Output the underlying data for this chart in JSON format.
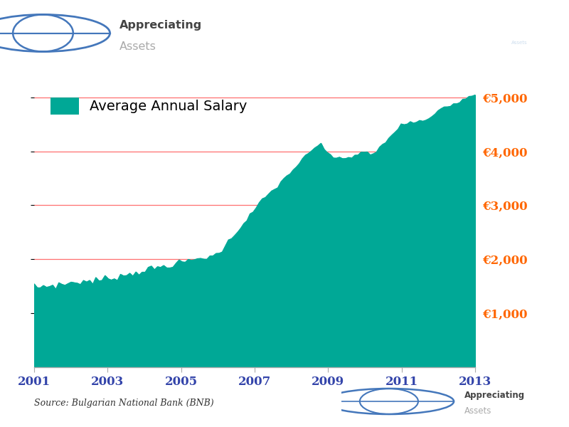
{
  "fill_color": "#00A896",
  "grid_color": "#FF6060",
  "x_tick_color": "#3344AA",
  "y_tick_color": "#FF6600",
  "source_text": "Source: Bulgarian National Bank (BNB)",
  "legend_label": "Average Annual Salary",
  "ylim": [
    0,
    5300
  ],
  "yticks": [
    1000,
    2000,
    3000,
    4000,
    5000
  ],
  "ytick_labels": [
    "€1,000",
    "€2,000",
    "€3,000",
    "€4,000",
    "€5,000"
  ],
  "x_years": [
    2001,
    2003,
    2005,
    2007,
    2009,
    2011,
    2013
  ],
  "values": [
    1480,
    1490,
    1470,
    1500,
    1510,
    1495,
    1520,
    1505,
    1530,
    1515,
    1540,
    1555,
    1560,
    1575,
    1565,
    1580,
    1590,
    1575,
    1600,
    1585,
    1610,
    1595,
    1620,
    1635,
    1640,
    1660,
    1650,
    1675,
    1690,
    1705,
    1720,
    1710,
    1735,
    1750,
    1765,
    1780,
    1795,
    1810,
    1825,
    1815,
    1840,
    1855,
    1870,
    1860,
    1885,
    1900,
    1915,
    1930,
    1945,
    1960,
    1950,
    1975,
    1990,
    2005,
    2020,
    2010,
    2035,
    2050,
    2065,
    2080,
    2120,
    2180,
    2250,
    2320,
    2390,
    2460,
    2530,
    2600,
    2670,
    2740,
    2810,
    2880,
    2950,
    3020,
    3090,
    3150,
    3200,
    3250,
    3300,
    3360,
    3420,
    3480,
    3540,
    3600,
    3660,
    3720,
    3780,
    3840,
    3900,
    3950,
    4000,
    4050,
    4100,
    4150,
    4050,
    3980,
    3900,
    3860,
    3880,
    3900,
    3880,
    3860,
    3880,
    3900,
    3920,
    3940,
    3960,
    3980,
    3960,
    3940,
    3960,
    3980,
    4060,
    4120,
    4180,
    4240,
    4300,
    4360,
    4420,
    4480,
    4500,
    4520,
    4540,
    4520,
    4540,
    4560,
    4550,
    4570,
    4590,
    4640,
    4700,
    4760,
    4800,
    4820,
    4840,
    4860,
    4880,
    4900,
    4930,
    4960,
    4980,
    5010,
    5030,
    5060
  ],
  "background_color": "#FFFFFF",
  "header_left_bg": "#DCE8F5",
  "banner_bg": "#5B8EC4",
  "fig_width": 8.0,
  "fig_height": 6.0,
  "dpi": 100
}
